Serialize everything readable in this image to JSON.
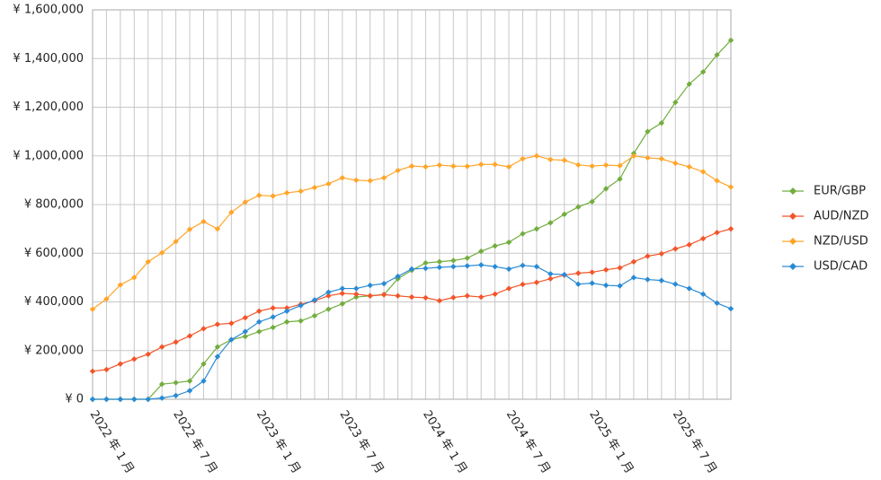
{
  "chart_data": {
    "type": "line",
    "categories": [
      "2022 年 1 月",
      null,
      null,
      null,
      null,
      null,
      "2022 年 7 月",
      null,
      null,
      null,
      null,
      null,
      "2023 年 1 月",
      null,
      null,
      null,
      null,
      null,
      "2023 年 7 月",
      null,
      null,
      null,
      null,
      null,
      "2024 年 1 月",
      null,
      null,
      null,
      null,
      null,
      "2024 年 7 月",
      null,
      null,
      null,
      null,
      null,
      "2025 年 1 月",
      null,
      null,
      null,
      null,
      null,
      "2025 年 7 月",
      null,
      null,
      null,
      null
    ],
    "series": [
      {
        "name": "EUR/GBP",
        "color": "#72ad3f",
        "values": [
          0,
          0,
          0,
          0,
          0,
          62000,
          68000,
          75000,
          145000,
          215000,
          245000,
          258000,
          278000,
          295000,
          318000,
          322000,
          343000,
          370000,
          392000,
          420000,
          425000,
          430000,
          495000,
          530000,
          560000,
          565000,
          570000,
          580000,
          608000,
          630000,
          645000,
          680000,
          700000,
          725000,
          760000,
          790000,
          812000,
          865000,
          905000,
          1010000,
          1100000,
          1135000,
          1220000,
          1295000,
          1345000,
          1415000,
          1475000
        ]
      },
      {
        "name": "AUD/NZD",
        "color": "#f2552a",
        "values": [
          115000,
          122000,
          145000,
          165000,
          185000,
          215000,
          235000,
          260000,
          290000,
          308000,
          312000,
          335000,
          362000,
          375000,
          375000,
          390000,
          405000,
          425000,
          435000,
          432000,
          425000,
          430000,
          425000,
          420000,
          417000,
          405000,
          418000,
          425000,
          420000,
          432000,
          455000,
          472000,
          480000,
          495000,
          510000,
          518000,
          522000,
          532000,
          540000,
          565000,
          588000,
          598000,
          618000,
          635000,
          660000,
          685000,
          700000
        ]
      },
      {
        "name": "NZD/USD",
        "color": "#ffa52a",
        "values": [
          370000,
          412000,
          470000,
          500000,
          565000,
          602000,
          648000,
          698000,
          730000,
          700000,
          768000,
          810000,
          838000,
          835000,
          848000,
          855000,
          870000,
          885000,
          910000,
          900000,
          898000,
          910000,
          940000,
          958000,
          955000,
          962000,
          958000,
          957000,
          965000,
          965000,
          955000,
          988000,
          1000000,
          985000,
          982000,
          963000,
          958000,
          962000,
          960000,
          1000000,
          992000,
          988000,
          970000,
          955000,
          935000,
          898000,
          872000
        ]
      },
      {
        "name": "USD/CAD",
        "color": "#2a8ad4",
        "values": [
          0,
          0,
          0,
          0,
          0,
          5000,
          15000,
          35000,
          75000,
          175000,
          245000,
          278000,
          318000,
          338000,
          362000,
          385000,
          408000,
          440000,
          455000,
          455000,
          468000,
          475000,
          505000,
          535000,
          538000,
          542000,
          545000,
          548000,
          552000,
          545000,
          535000,
          550000,
          545000,
          515000,
          512000,
          473000,
          477000,
          468000,
          466000,
          500000,
          492000,
          488000,
          473000,
          455000,
          432000,
          395000,
          372000
        ]
      }
    ],
    "ylim": [
      0,
      1600000
    ],
    "yticks": [
      {
        "value": 0,
        "label": "¥ 0"
      },
      {
        "value": 200000,
        "label": "¥ 200,000"
      },
      {
        "value": 400000,
        "label": "¥ 400,000"
      },
      {
        "value": 600000,
        "label": "¥ 600,000"
      },
      {
        "value": 800000,
        "label": "¥ 800,000"
      },
      {
        "value": 1000000,
        "label": "¥ 1,000,000"
      },
      {
        "value": 1200000,
        "label": "¥ 1,200,000"
      },
      {
        "value": 1400000,
        "label": "¥ 1,400,000"
      },
      {
        "value": 1600000,
        "label": "¥ 1,600,000"
      }
    ],
    "grid": true,
    "legend": "right"
  }
}
